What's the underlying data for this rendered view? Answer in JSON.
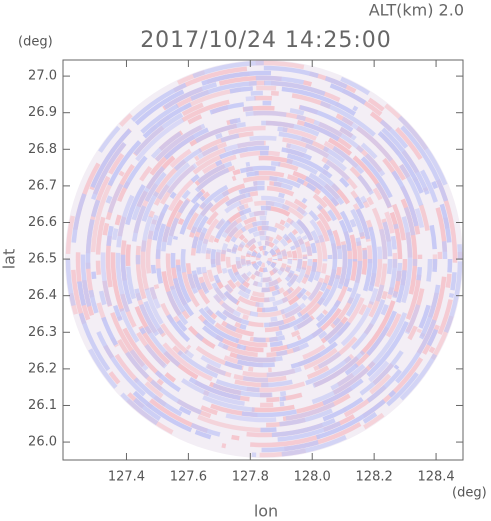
{
  "chart_data": {
    "type": "radar-ppi",
    "title": "2017/10/24 14:25:00",
    "annotation": "ALT(km) 2.0",
    "x_label": "lon",
    "y_label": "lat",
    "x_unit": "(deg)",
    "y_unit": "(deg)",
    "xlim": [
      127.195,
      128.487
    ],
    "ylim": [
      25.951,
      27.044
    ],
    "xticks": [
      127.4,
      127.6,
      127.8,
      {
        "value": 128.0,
        "label": "128.0"
      },
      128.2,
      128.4
    ],
    "yticks": [
      {
        "value": 26.0,
        "label": "26.0"
      },
      26.1,
      26.2,
      26.3,
      26.4,
      26.5,
      26.6,
      26.7,
      26.8,
      26.9,
      {
        "value": 27.0,
        "label": "27.0"
      }
    ],
    "grid": false
  }
}
